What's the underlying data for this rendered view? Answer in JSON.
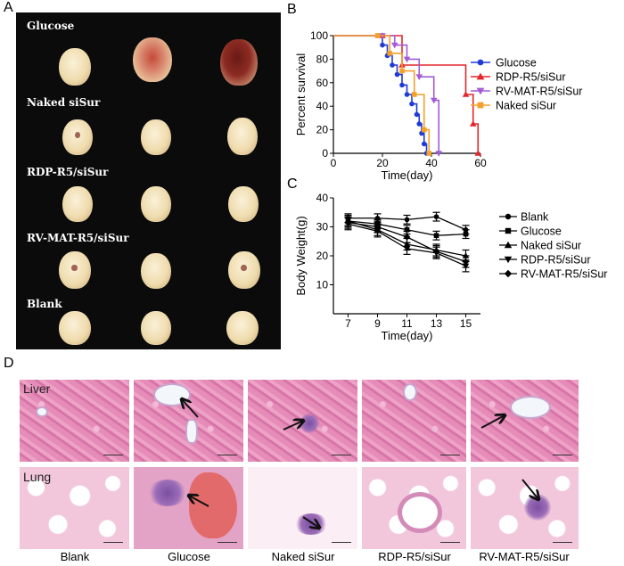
{
  "panels": {
    "a": "A",
    "b": "B",
    "c": "C",
    "d": "D"
  },
  "photo": {
    "group_labels": [
      "Glucose",
      "Naked siSur",
      "RDP-R5/siSur",
      "RV-MAT-R5/siSur",
      "Blank"
    ]
  },
  "chart_data": [
    {
      "type": "line",
      "subtype": "kaplan-meier",
      "xlabel": "Time(day)",
      "ylabel": "Percent survival",
      "xlim": [
        0,
        60
      ],
      "ylim": [
        0,
        100
      ],
      "xticks": [
        0,
        20,
        40,
        60
      ],
      "yticks": [
        0,
        20,
        40,
        60,
        80,
        100
      ],
      "legend_position": "right",
      "series": [
        {
          "name": "Glucose",
          "color": "#1f3bd6",
          "marker": "circle",
          "x": [
            0,
            18,
            20,
            22,
            24,
            26,
            28,
            30,
            32,
            34,
            35,
            36,
            37,
            38
          ],
          "y": [
            100,
            100,
            92,
            83,
            75,
            67,
            58,
            50,
            42,
            33,
            25,
            17,
            8,
            0
          ]
        },
        {
          "name": "RDP-R5/siSur",
          "color": "#e3262b",
          "marker": "triangle-up",
          "x": [
            0,
            20,
            28,
            54,
            57,
            59
          ],
          "y": [
            100,
            100,
            75,
            50,
            25,
            0
          ]
        },
        {
          "name": "RV-MAT-R5/siSur",
          "color": "#a35bd6",
          "marker": "triangle-down",
          "x": [
            0,
            20,
            25,
            30,
            35,
            41,
            43
          ],
          "y": [
            100,
            100,
            92,
            80,
            65,
            45,
            0
          ]
        },
        {
          "name": "Naked siSur",
          "color": "#f3a12a",
          "marker": "square",
          "x": [
            0,
            18,
            23,
            28,
            33,
            37,
            39
          ],
          "y": [
            100,
            100,
            85,
            70,
            50,
            20,
            0
          ]
        }
      ]
    },
    {
      "type": "line",
      "xlabel": "Time(day)",
      "ylabel": "Body Weight(g)",
      "xlim": [
        6,
        16
      ],
      "ylim": [
        0,
        40
      ],
      "xticks": [
        7,
        9,
        11,
        13,
        15
      ],
      "yticks": [
        10,
        20,
        30,
        40
      ],
      "legend_position": "right",
      "series": [
        {
          "name": "Blank",
          "marker": "circle",
          "x": [
            7,
            9,
            11,
            13,
            15
          ],
          "y": [
            33,
            33,
            32.5,
            33.5,
            29
          ],
          "err": 1.5
        },
        {
          "name": "Glucose",
          "marker": "square",
          "x": [
            7,
            9,
            11,
            13,
            15
          ],
          "y": [
            32,
            31,
            29,
            27,
            27.5
          ],
          "err": 1.5
        },
        {
          "name": "Naked siSur",
          "marker": "triangle-up",
          "x": [
            7,
            9,
            11,
            13,
            15
          ],
          "y": [
            32,
            29,
            24,
            22,
            20
          ],
          "err": 2
        },
        {
          "name": "RDP-R5/siSur",
          "marker": "triangle-down",
          "x": [
            7,
            9,
            11,
            13,
            15
          ],
          "y": [
            31,
            28.5,
            22.5,
            21,
            16.5
          ],
          "err": 2
        },
        {
          "name": "RV-MAT-R5/siSur",
          "marker": "diamond",
          "x": [
            7,
            9,
            11,
            13,
            15
          ],
          "y": [
            31.5,
            30,
            26.5,
            21.5,
            18
          ],
          "err": 2
        }
      ]
    }
  ],
  "histology": {
    "row_labels": [
      "Liver",
      "Lung"
    ],
    "column_labels": [
      "Blank",
      "Glucose",
      "Naked siSur",
      "RDP-R5/siSur",
      "RV-MAT-R5/siSur"
    ]
  }
}
